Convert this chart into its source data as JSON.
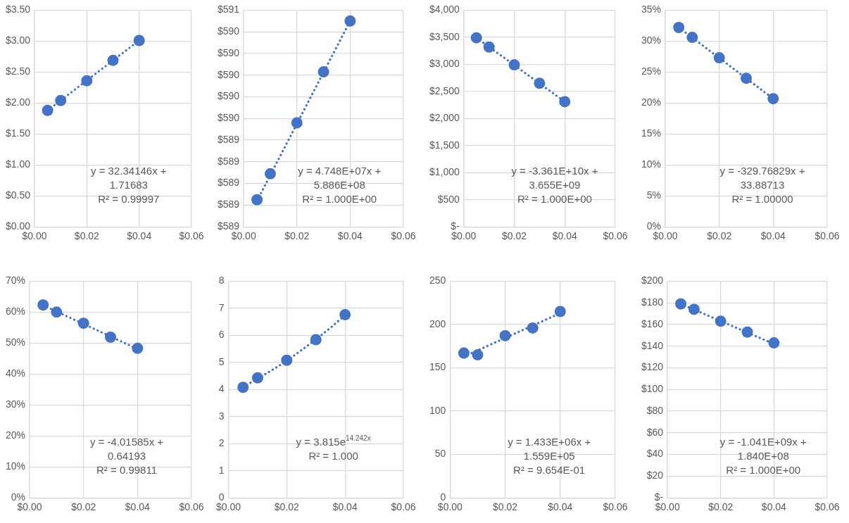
{
  "chart_data": [
    {
      "type": "scatter",
      "grid": true,
      "xlim": [
        0,
        0.06
      ],
      "xticks": [
        {
          "value": 0,
          "label": "$0.00"
        },
        {
          "value": 0.02,
          "label": "$0.02"
        },
        {
          "value": 0.04,
          "label": "$0.04"
        },
        {
          "value": 0.06,
          "label": "$0.06"
        }
      ],
      "ylim": [
        0,
        3.5
      ],
      "yticks": [
        {
          "value": 0,
          "label": "$0.00"
        },
        {
          "value": 0.5,
          "label": "$0.50"
        },
        {
          "value": 1,
          "label": "$1.00"
        },
        {
          "value": 1.5,
          "label": "$1.50"
        },
        {
          "value": 2,
          "label": "$2.00"
        },
        {
          "value": 2.5,
          "label": "$2.50"
        },
        {
          "value": 3,
          "label": "$3.00"
        },
        {
          "value": 3.5,
          "label": "$3.50"
        }
      ],
      "annotations": [
        "y = 32.34146x +\n1.71683\nR² = 0.99997"
      ],
      "series": [
        {
          "type": "scatter",
          "marker": "circle",
          "color": "#4472c4",
          "x": [
            0.005,
            0.01,
            0.02,
            0.03,
            0.04
          ],
          "values": [
            1.88,
            2.04,
            2.36,
            2.69,
            3.01
          ]
        },
        {
          "type": "line",
          "marker": "none",
          "line_style": "dotted",
          "color": "#4472c4",
          "x": [
            0.005,
            0.04
          ],
          "values": [
            1.88,
            3.01
          ]
        }
      ]
    },
    {
      "type": "scatter",
      "grid": true,
      "xlim": [
        0,
        0.06
      ],
      "xticks": [
        {
          "value": 0,
          "label": "$0.00"
        },
        {
          "value": 0.02,
          "label": "$0.02"
        },
        {
          "value": 0.04,
          "label": "$0.04"
        },
        {
          "value": 0.06,
          "label": "$0.06"
        }
      ],
      "ylim": [
        588.6,
        590.6
      ],
      "yticks": [
        {
          "value": 588.6,
          "label": "$589"
        },
        {
          "value": 588.8,
          "label": "$589"
        },
        {
          "value": 589.0,
          "label": "$589"
        },
        {
          "value": 589.2,
          "label": "$589"
        },
        {
          "value": 589.4,
          "label": "$589"
        },
        {
          "value": 589.6,
          "label": "$590"
        },
        {
          "value": 589.8,
          "label": "$590"
        },
        {
          "value": 590.0,
          "label": "$590"
        },
        {
          "value": 590.2,
          "label": "$590"
        },
        {
          "value": 590.4,
          "label": "$590"
        },
        {
          "value": 590.6,
          "label": "$591"
        }
      ],
      "annotations": [
        "y = 4.748E+07x +\n5.886E+08\nR² = 1.000E+00"
      ],
      "series": [
        {
          "type": "scatter",
          "marker": "circle",
          "color": "#4472c4",
          "x": [
            0.005,
            0.01,
            0.02,
            0.03,
            0.04
          ],
          "values": [
            588.85,
            589.09,
            589.56,
            590.03,
            590.5
          ]
        },
        {
          "type": "line",
          "marker": "none",
          "line_style": "dotted",
          "color": "#4472c4",
          "x": [
            0.005,
            0.04
          ],
          "values": [
            588.84,
            590.5
          ]
        }
      ]
    },
    {
      "type": "scatter",
      "grid": true,
      "xlim": [
        0,
        0.06
      ],
      "xticks": [
        {
          "value": 0,
          "label": "$0.00"
        },
        {
          "value": 0.02,
          "label": "$0.02"
        },
        {
          "value": 0.04,
          "label": "$0.04"
        },
        {
          "value": 0.06,
          "label": "$0.06"
        }
      ],
      "ylim": [
        0,
        4000
      ],
      "yticks": [
        {
          "value": 0,
          "label": "$-"
        },
        {
          "value": 500,
          "label": "$500"
        },
        {
          "value": 1000,
          "label": "$1,000"
        },
        {
          "value": 1500,
          "label": "$1,500"
        },
        {
          "value": 2000,
          "label": "$2,000"
        },
        {
          "value": 2500,
          "label": "$2,500"
        },
        {
          "value": 3000,
          "label": "$3,000"
        },
        {
          "value": 3500,
          "label": "$3,500"
        },
        {
          "value": 4000,
          "label": "$4,000"
        }
      ],
      "annotations": [
        "y = -3.361E+10x +\n3.655E+09\nR² = 1.000E+00"
      ],
      "series": [
        {
          "type": "scatter",
          "marker": "circle",
          "color": "#4472c4",
          "x": [
            0.005,
            0.01,
            0.02,
            0.03,
            0.04
          ],
          "values": [
            3490,
            3320,
            2990,
            2650,
            2310
          ]
        },
        {
          "type": "line",
          "marker": "none",
          "line_style": "dotted",
          "color": "#4472c4",
          "x": [
            0.005,
            0.04
          ],
          "values": [
            3490,
            2310
          ]
        }
      ]
    },
    {
      "type": "scatter",
      "grid": true,
      "xlim": [
        0,
        0.06
      ],
      "xticks": [
        {
          "value": 0,
          "label": "$0.00"
        },
        {
          "value": 0.02,
          "label": "$0.02"
        },
        {
          "value": 0.04,
          "label": "$0.04"
        },
        {
          "value": 0.06,
          "label": "$0.06"
        }
      ],
      "ylim": [
        0,
        35
      ],
      "yticks": [
        {
          "value": 0,
          "label": "0%"
        },
        {
          "value": 5,
          "label": "5%"
        },
        {
          "value": 10,
          "label": "10%"
        },
        {
          "value": 15,
          "label": "15%"
        },
        {
          "value": 20,
          "label": "20%"
        },
        {
          "value": 25,
          "label": "25%"
        },
        {
          "value": 30,
          "label": "30%"
        },
        {
          "value": 35,
          "label": "35%"
        }
      ],
      "annotations": [
        "y = -329.76829x +\n33.88713\nR² = 1.00000"
      ],
      "series": [
        {
          "type": "scatter",
          "marker": "circle",
          "color": "#4472c4",
          "x": [
            0.005,
            0.01,
            0.02,
            0.03,
            0.04
          ],
          "values": [
            32.2,
            30.6,
            27.3,
            24.0,
            20.7
          ]
        },
        {
          "type": "line",
          "marker": "none",
          "line_style": "dotted",
          "color": "#4472c4",
          "x": [
            0.005,
            0.04
          ],
          "values": [
            32.2,
            20.7
          ]
        }
      ]
    },
    {
      "type": "scatter",
      "grid": true,
      "xlim": [
        0,
        0.06
      ],
      "xticks": [
        {
          "value": 0,
          "label": "$0.00"
        },
        {
          "value": 0.02,
          "label": "$0.02"
        },
        {
          "value": 0.04,
          "label": "$0.04"
        },
        {
          "value": 0.06,
          "label": "$0.06"
        }
      ],
      "ylim": [
        0,
        70
      ],
      "yticks": [
        {
          "value": 0,
          "label": "0%"
        },
        {
          "value": 10,
          "label": "10%"
        },
        {
          "value": 20,
          "label": "20%"
        },
        {
          "value": 30,
          "label": "30%"
        },
        {
          "value": 40,
          "label": "40%"
        },
        {
          "value": 50,
          "label": "50%"
        },
        {
          "value": 60,
          "label": "60%"
        },
        {
          "value": 70,
          "label": "70%"
        }
      ],
      "annotations": [
        "y = -4.01585x +\n0.64193\nR² = 0.99811"
      ],
      "series": [
        {
          "type": "scatter",
          "marker": "circle",
          "color": "#4472c4",
          "x": [
            0.005,
            0.01,
            0.02,
            0.03,
            0.04
          ],
          "values": [
            62.3,
            60.0,
            56.4,
            51.9,
            48.3
          ]
        },
        {
          "type": "line",
          "marker": "none",
          "line_style": "dotted",
          "color": "#4472c4",
          "x": [
            0.005,
            0.04
          ],
          "values": [
            62.2,
            48.1
          ]
        }
      ]
    },
    {
      "type": "scatter",
      "grid": true,
      "xlim": [
        0,
        0.06
      ],
      "xticks": [
        {
          "value": 0,
          "label": "$0.00"
        },
        {
          "value": 0.02,
          "label": "$0.02"
        },
        {
          "value": 0.04,
          "label": "$0.04"
        },
        {
          "value": 0.06,
          "label": "$0.06"
        }
      ],
      "ylim": [
        0,
        8
      ],
      "yticks": [
        0,
        1,
        2,
        3,
        4,
        5,
        6,
        7,
        8
      ],
      "annotations": [
        "y = 3.815e$^{14.242x}$\nR² = 1.000"
      ],
      "series": [
        {
          "type": "scatter",
          "marker": "circle",
          "color": "#4472c4",
          "x": [
            0.005,
            0.01,
            0.02,
            0.03,
            0.04
          ],
          "values": [
            4.08,
            4.43,
            5.08,
            5.84,
            6.76
          ]
        },
        {
          "type": "line",
          "marker": "none",
          "line_style": "dotted",
          "color": "#4472c4",
          "x": [
            0.005,
            0.01,
            0.015,
            0.02,
            0.025,
            0.03,
            0.035,
            0.04
          ],
          "values": [
            4.09,
            4.4,
            4.72,
            5.06,
            5.45,
            5.85,
            6.28,
            6.75
          ]
        }
      ]
    },
    {
      "type": "scatter",
      "grid": true,
      "xlim": [
        0,
        0.06
      ],
      "xticks": [
        {
          "value": 0,
          "label": "$0.00"
        },
        {
          "value": 0.02,
          "label": "$0.02"
        },
        {
          "value": 0.04,
          "label": "$0.04"
        },
        {
          "value": 0.06,
          "label": "$0.06"
        }
      ],
      "ylim": [
        0,
        250
      ],
      "yticks": [
        0,
        50,
        100,
        150,
        200,
        250
      ],
      "annotations": [
        "y = 1.433E+06x +\n1.559E+05\nR² = 9.654E-01"
      ],
      "series": [
        {
          "type": "scatter",
          "marker": "circle",
          "color": "#4472c4",
          "x": [
            0.005,
            0.01,
            0.02,
            0.03,
            0.04
          ],
          "values": [
            167,
            165,
            187,
            196,
            215
          ]
        },
        {
          "type": "line",
          "marker": "none",
          "line_style": "dotted",
          "color": "#4472c4",
          "x": [
            0.005,
            0.04
          ],
          "values": [
            163,
            213
          ]
        }
      ]
    },
    {
      "type": "scatter",
      "grid": true,
      "xlim": [
        0,
        0.06
      ],
      "xticks": [
        {
          "value": 0,
          "label": "$0.00"
        },
        {
          "value": 0.02,
          "label": "$0.02"
        },
        {
          "value": 0.04,
          "label": "$0.04"
        },
        {
          "value": 0.06,
          "label": "$0.06"
        }
      ],
      "ylim": [
        0,
        200
      ],
      "yticks": [
        {
          "value": 0,
          "label": "$-"
        },
        {
          "value": 20,
          "label": "$20"
        },
        {
          "value": 40,
          "label": "$40"
        },
        {
          "value": 60,
          "label": "$60"
        },
        {
          "value": 80,
          "label": "$80"
        },
        {
          "value": 100,
          "label": "$100"
        },
        {
          "value": 120,
          "label": "$120"
        },
        {
          "value": 140,
          "label": "$140"
        },
        {
          "value": 160,
          "label": "$160"
        },
        {
          "value": 180,
          "label": "$180"
        },
        {
          "value": 200,
          "label": "$200"
        }
      ],
      "annotations": [
        "y = -1.041E+09x +\n1.840E+08\nR² = 1.000E+00"
      ],
      "series": [
        {
          "type": "scatter",
          "marker": "circle",
          "color": "#4472c4",
          "x": [
            0.005,
            0.01,
            0.02,
            0.03,
            0.04
          ],
          "values": [
            179,
            174,
            163,
            153,
            143
          ]
        },
        {
          "type": "line",
          "marker": "none",
          "line_style": "dotted",
          "color": "#4472c4",
          "x": [
            0.005,
            0.04
          ],
          "values": [
            179,
            142
          ]
        }
      ]
    }
  ]
}
